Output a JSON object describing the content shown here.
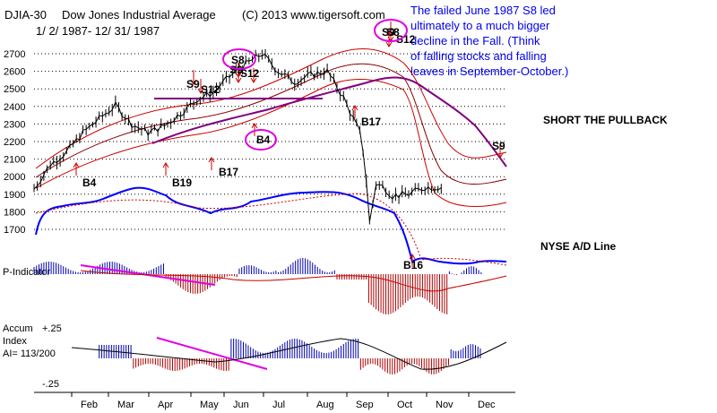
{
  "header": {
    "symbol": "DJIA-30",
    "name": "Dow Jones Industrial Average",
    "copyright": "(C) 2013 www.tigersoft.com",
    "date_range": "1/ 2/ 1987- 12/ 31/ 1987"
  },
  "annotation_note": {
    "lines": [
      "The failed June 1987 S8 led",
      "ultimately to a much bigger",
      "decline in the Fall.  (Think",
      "of falling stocks and falling",
      "leaves in September-October.)"
    ]
  },
  "side_labels": {
    "short": "SHORT THE PULLBACK",
    "ad_line": "NYSE A/D Line"
  },
  "panel_labels": {
    "p_indicator": "P-Indicator",
    "accum_title": "Accum",
    "accum_index": "Index",
    "ai": "AI= 113/200",
    "plus": "+.25",
    "minus": "-.25"
  },
  "chart_data": {
    "type": "line",
    "title": "Dow Jones Industrial Average 1987",
    "x_labels": [
      "Feb",
      "Mar",
      "Apr",
      "May",
      "Jun",
      "Jul",
      "Aug",
      "Sep",
      "Oct",
      "Nov",
      "Dec"
    ],
    "y_ticks": [
      2700,
      2600,
      2500,
      2400,
      2300,
      2200,
      2100,
      2000,
      1900,
      1800,
      1700
    ],
    "ylim": [
      1650,
      2780
    ],
    "dates_index": [
      0,
      10,
      20,
      30,
      40,
      50,
      60,
      70,
      80,
      90,
      100,
      110,
      120,
      130,
      140,
      150,
      160,
      170,
      180,
      190,
      200,
      203,
      206,
      210,
      215,
      220,
      230,
      240,
      250
    ],
    "dija_close": [
      1930,
      2070,
      2140,
      2250,
      2330,
      2405,
      2300,
      2250,
      2290,
      2360,
      2440,
      2480,
      2570,
      2640,
      2700,
      2600,
      2540,
      2580,
      2600,
      2450,
      2250,
      2100,
      1740,
      1960,
      1940,
      1890,
      1900,
      1940,
      1940
    ],
    "signals": [
      {
        "label": "B4",
        "kind": "buy",
        "x_index": 18
      },
      {
        "label": "B19",
        "kind": "buy",
        "x_index": 82
      },
      {
        "label": "B17",
        "kind": "buy",
        "x_index": 110
      },
      {
        "label": "B4",
        "kind": "buy",
        "x_index": 142
      },
      {
        "label": "B17",
        "kind": "buy",
        "x_index": 202
      },
      {
        "label": "S9",
        "kind": "sell",
        "x_index": 100
      },
      {
        "label": "S12",
        "kind": "sell",
        "x_index": 110
      },
      {
        "label": "S8",
        "kind": "sell",
        "x_index": 128
      },
      {
        "label": "S9",
        "kind": "sell",
        "x_index": 128
      },
      {
        "label": "S12",
        "kind": "sell",
        "x_index": 136
      },
      {
        "label": "S9",
        "kind": "sell",
        "x_index": 232
      },
      {
        "label": "S8",
        "kind": "sell",
        "x_index": 234
      },
      {
        "label": "S12",
        "kind": "sell",
        "x_index": 242
      },
      {
        "label": "S9",
        "kind": "sell",
        "x_index": 280
      },
      {
        "label": "B16",
        "kind": "buy",
        "x_index": 222
      }
    ]
  }
}
